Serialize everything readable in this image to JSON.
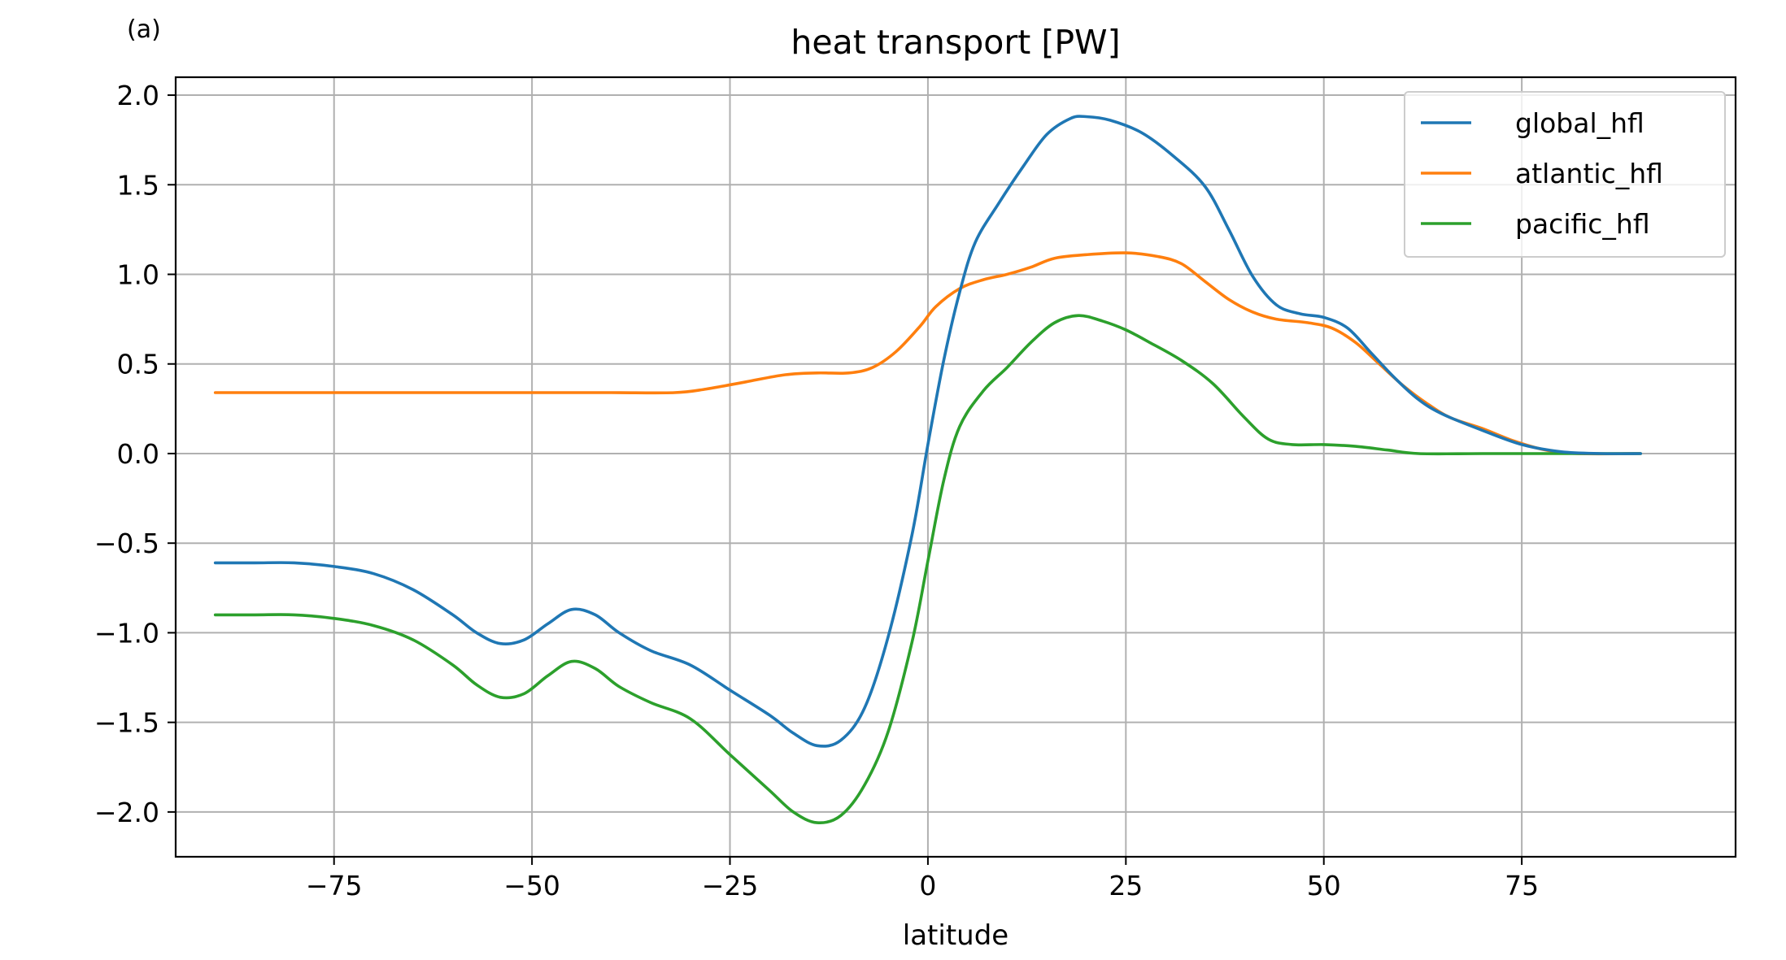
{
  "panel_label": "(a)",
  "chart_data": {
    "type": "line",
    "title": "heat transport [PW]",
    "xlabel": "latitude",
    "ylabel": "",
    "xlim": [
      -95,
      102
    ],
    "ylim": [
      -2.25,
      2.1
    ],
    "xticks": [
      -75,
      -50,
      -25,
      0,
      25,
      50,
      75
    ],
    "xtick_labels": [
      "−75",
      "−50",
      "−25",
      "0",
      "25",
      "50",
      "75"
    ],
    "yticks": [
      2.0,
      1.5,
      1.0,
      0.5,
      0.0,
      -0.5,
      -1.0,
      -1.5,
      -2.0
    ],
    "ytick_labels": [
      "2.0",
      "1.5",
      "1.0",
      "0.5",
      "0.0",
      "−0.5",
      "−1.0",
      "−1.5",
      "−2.0"
    ],
    "grid": true,
    "legend_position": "top-right",
    "series": [
      {
        "name": "global_hfl",
        "color": "#1f77b4",
        "points": [
          [
            -90,
            -0.61
          ],
          [
            -85,
            -0.61
          ],
          [
            -80,
            -0.61
          ],
          [
            -75,
            -0.63
          ],
          [
            -70,
            -0.67
          ],
          [
            -65,
            -0.76
          ],
          [
            -60,
            -0.9
          ],
          [
            -57,
            -1.0
          ],
          [
            -54,
            -1.06
          ],
          [
            -51,
            -1.04
          ],
          [
            -48,
            -0.95
          ],
          [
            -45,
            -0.87
          ],
          [
            -42,
            -0.9
          ],
          [
            -39,
            -1.0
          ],
          [
            -35,
            -1.1
          ],
          [
            -30,
            -1.18
          ],
          [
            -25,
            -1.32
          ],
          [
            -20,
            -1.46
          ],
          [
            -17,
            -1.56
          ],
          [
            -14,
            -1.63
          ],
          [
            -11,
            -1.6
          ],
          [
            -8,
            -1.42
          ],
          [
            -5,
            -1.02
          ],
          [
            -2,
            -0.45
          ],
          [
            0,
            0.05
          ],
          [
            2,
            0.52
          ],
          [
            4,
            0.9
          ],
          [
            6,
            1.18
          ],
          [
            9,
            1.4
          ],
          [
            12,
            1.6
          ],
          [
            15,
            1.78
          ],
          [
            18,
            1.87
          ],
          [
            20,
            1.88
          ],
          [
            23,
            1.86
          ],
          [
            27,
            1.79
          ],
          [
            31,
            1.66
          ],
          [
            35,
            1.49
          ],
          [
            38,
            1.25
          ],
          [
            41,
            0.99
          ],
          [
            44,
            0.83
          ],
          [
            47,
            0.78
          ],
          [
            50,
            0.76
          ],
          [
            53,
            0.7
          ],
          [
            56,
            0.56
          ],
          [
            59,
            0.42
          ],
          [
            62,
            0.3
          ],
          [
            65,
            0.22
          ],
          [
            70,
            0.13
          ],
          [
            75,
            0.05
          ],
          [
            80,
            0.01
          ],
          [
            85,
            0.0
          ],
          [
            90,
            0.0
          ]
        ]
      },
      {
        "name": "atlantic_hfl",
        "color": "#ff7f0e",
        "points": [
          [
            -90,
            0.34
          ],
          [
            -80,
            0.34
          ],
          [
            -70,
            0.34
          ],
          [
            -60,
            0.34
          ],
          [
            -50,
            0.34
          ],
          [
            -40,
            0.34
          ],
          [
            -32,
            0.34
          ],
          [
            -28,
            0.36
          ],
          [
            -23,
            0.4
          ],
          [
            -18,
            0.44
          ],
          [
            -14,
            0.45
          ],
          [
            -10,
            0.45
          ],
          [
            -7,
            0.48
          ],
          [
            -4,
            0.57
          ],
          [
            -1,
            0.71
          ],
          [
            1,
            0.82
          ],
          [
            4,
            0.92
          ],
          [
            7,
            0.97
          ],
          [
            10,
            1.0
          ],
          [
            13,
            1.04
          ],
          [
            16,
            1.09
          ],
          [
            20,
            1.11
          ],
          [
            25,
            1.12
          ],
          [
            29,
            1.1
          ],
          [
            32,
            1.06
          ],
          [
            35,
            0.96
          ],
          [
            38,
            0.86
          ],
          [
            41,
            0.79
          ],
          [
            44,
            0.75
          ],
          [
            48,
            0.73
          ],
          [
            51,
            0.7
          ],
          [
            54,
            0.62
          ],
          [
            57,
            0.5
          ],
          [
            60,
            0.38
          ],
          [
            63,
            0.28
          ],
          [
            66,
            0.2
          ],
          [
            70,
            0.14
          ],
          [
            74,
            0.07
          ],
          [
            78,
            0.02
          ],
          [
            82,
            0.0
          ],
          [
            90,
            0.0
          ]
        ]
      },
      {
        "name": "pacific_hfl",
        "color": "#2ca02c",
        "points": [
          [
            -90,
            -0.9
          ],
          [
            -85,
            -0.9
          ],
          [
            -80,
            -0.9
          ],
          [
            -75,
            -0.92
          ],
          [
            -70,
            -0.96
          ],
          [
            -65,
            -1.04
          ],
          [
            -60,
            -1.18
          ],
          [
            -57,
            -1.29
          ],
          [
            -54,
            -1.36
          ],
          [
            -51,
            -1.34
          ],
          [
            -48,
            -1.24
          ],
          [
            -45,
            -1.16
          ],
          [
            -42,
            -1.2
          ],
          [
            -39,
            -1.3
          ],
          [
            -35,
            -1.39
          ],
          [
            -30,
            -1.48
          ],
          [
            -25,
            -1.68
          ],
          [
            -20,
            -1.88
          ],
          [
            -17,
            -2.0
          ],
          [
            -14,
            -2.06
          ],
          [
            -11,
            -2.02
          ],
          [
            -8,
            -1.85
          ],
          [
            -5,
            -1.55
          ],
          [
            -2,
            -1.05
          ],
          [
            0,
            -0.6
          ],
          [
            2,
            -0.15
          ],
          [
            4,
            0.15
          ],
          [
            7,
            0.35
          ],
          [
            10,
            0.48
          ],
          [
            13,
            0.62
          ],
          [
            16,
            0.73
          ],
          [
            19,
            0.77
          ],
          [
            22,
            0.74
          ],
          [
            25,
            0.69
          ],
          [
            28,
            0.62
          ],
          [
            32,
            0.52
          ],
          [
            36,
            0.39
          ],
          [
            40,
            0.2
          ],
          [
            43,
            0.08
          ],
          [
            46,
            0.05
          ],
          [
            50,
            0.05
          ],
          [
            54,
            0.04
          ],
          [
            58,
            0.02
          ],
          [
            62,
            0.0
          ],
          [
            70,
            0.0
          ],
          [
            80,
            0.0
          ],
          [
            90,
            0.0
          ]
        ]
      }
    ]
  }
}
